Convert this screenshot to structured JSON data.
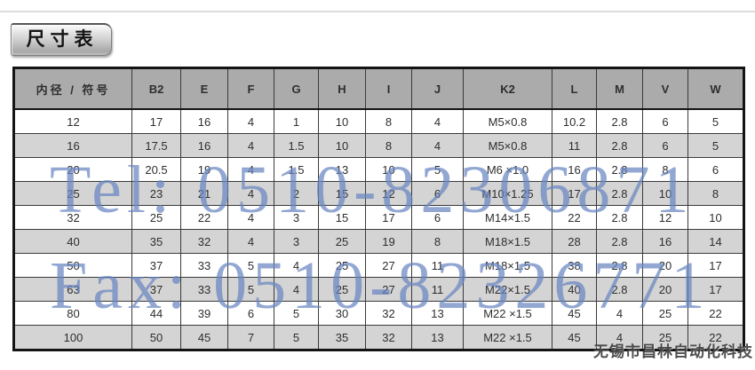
{
  "title": {
    "label": "尺寸表"
  },
  "watermarks": {
    "tel": "Tel: 0510-82306871",
    "fax": "Fax: 0510-82326771",
    "company": "无锡市昌林自动化科技",
    "blue_color": "#6885c0",
    "company_color": "#3e3e3e"
  },
  "table": {
    "headers": [
      "内径 / 符号",
      "B2",
      "E",
      "F",
      "G",
      "H",
      "I",
      "J",
      "K2",
      "L",
      "M",
      "V",
      "W"
    ],
    "rows": [
      [
        "12",
        "17",
        "16",
        "4",
        "1",
        "10",
        "8",
        "4",
        "M5×0.8",
        "10.2",
        "2.8",
        "6",
        "5"
      ],
      [
        "16",
        "17.5",
        "16",
        "4",
        "1.5",
        "10",
        "8",
        "4",
        "M5×0.8",
        "11",
        "2.8",
        "6",
        "5"
      ],
      [
        "20",
        "20.5",
        "19",
        "4",
        "1.5",
        "13",
        "10",
        "5",
        "M6 ×1.0",
        "16",
        "2.8",
        "8",
        "6"
      ],
      [
        "25",
        "23",
        "21",
        "4",
        "2",
        "15",
        "12",
        "6",
        "M10×1.25",
        "17",
        "2.8",
        "10",
        "8"
      ],
      [
        "32",
        "25",
        "22",
        "4",
        "3",
        "15",
        "17",
        "6",
        "M14×1.5",
        "22",
        "2.8",
        "12",
        "10"
      ],
      [
        "40",
        "35",
        "32",
        "4",
        "3",
        "25",
        "19",
        "8",
        "M18×1.5",
        "28",
        "2.8",
        "16",
        "14"
      ],
      [
        "50",
        "37",
        "33",
        "5",
        "4",
        "25",
        "27",
        "11",
        "M18×1.5",
        "38",
        "2.8",
        "20",
        "17"
      ],
      [
        "63",
        "37",
        "33",
        "5",
        "4",
        "25",
        "27",
        "11",
        "M22×1.5",
        "40",
        "2.8",
        "20",
        "17"
      ],
      [
        "80",
        "44",
        "39",
        "6",
        "5",
        "30",
        "32",
        "13",
        "M22 ×1.5",
        "45",
        "4",
        "25",
        "22"
      ],
      [
        "100",
        "50",
        "45",
        "7",
        "5",
        "35",
        "32",
        "13",
        "M22 ×1.5",
        "45",
        "4",
        "25",
        "22"
      ]
    ],
    "colors": {
      "header_bg": "#ababab",
      "alt_row_bg": "#d4d4d4",
      "grid_border": "#3a3a3a",
      "outer_border": "#141414"
    }
  }
}
